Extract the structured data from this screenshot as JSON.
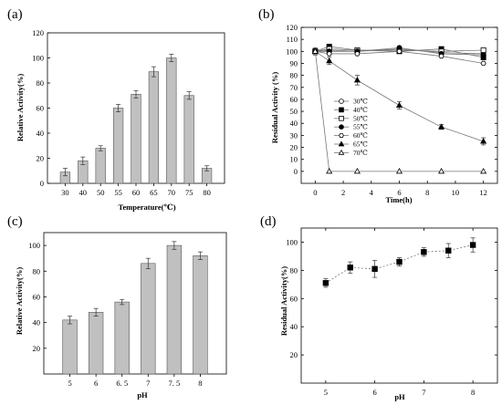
{
  "chart_data": [
    {
      "panel": "(a)",
      "type": "bar",
      "xlabel": "Temperature(℃)",
      "ylabel": "Relative Activity(%)",
      "ylim": [
        0,
        120
      ],
      "yticks": [
        0,
        20,
        40,
        60,
        80,
        100,
        120
      ],
      "categories": [
        "30",
        "40",
        "50",
        "55",
        "60",
        "65",
        "70",
        "75",
        "80"
      ],
      "values": [
        9,
        18,
        28,
        60,
        71,
        89,
        100,
        70,
        12
      ],
      "errors": [
        3,
        3,
        2,
        3,
        3,
        4,
        3,
        3,
        2
      ],
      "bar_color": "#c0c0c0",
      "grid": false
    },
    {
      "panel": "(b)",
      "type": "line",
      "xlabel": "Time(h)",
      "ylabel": "Residual Activity (%)",
      "xlim": [
        -1,
        13
      ],
      "xticks": [
        0,
        2,
        4,
        6,
        8,
        10,
        12
      ],
      "ylim": [
        -10,
        120
      ],
      "yticks": [
        0,
        10,
        20,
        30,
        40,
        50,
        60,
        70,
        80,
        90,
        100,
        110,
        120
      ],
      "legend_position": "center-left",
      "grid": false,
      "series": [
        {
          "name": "30℃",
          "marker": "circle-open",
          "x": [
            0,
            1,
            3,
            6,
            9,
            12
          ],
          "y": [
            100,
            101,
            100,
            102,
            99,
            98
          ]
        },
        {
          "name": "40℃",
          "marker": "square-filled",
          "x": [
            0,
            1,
            3,
            6,
            9,
            12
          ],
          "y": [
            100,
            104,
            101,
            100,
            102,
            95
          ]
        },
        {
          "name": "50℃",
          "marker": "square-open",
          "x": [
            0,
            1,
            3,
            6,
            9,
            12
          ],
          "y": [
            100,
            102,
            101,
            101,
            100,
            101
          ]
        },
        {
          "name": "55℃",
          "marker": "circle-filled",
          "x": [
            0,
            1,
            3,
            6,
            9,
            12
          ],
          "y": [
            100,
            100,
            100,
            103,
            98,
            97
          ]
        },
        {
          "name": "60℃",
          "marker": "hexagon-open",
          "x": [
            0,
            1,
            3,
            6,
            9,
            12
          ],
          "y": [
            100,
            98,
            98,
            100,
            96,
            90
          ]
        },
        {
          "name": "65℃",
          "marker": "triangle-filled",
          "x": [
            0,
            1,
            3,
            6,
            9,
            12
          ],
          "y": [
            100,
            92,
            76,
            55,
            37,
            25
          ],
          "errors": [
            3,
            3,
            4,
            3,
            2,
            3
          ]
        },
        {
          "name": "70℃",
          "marker": "triangle-open",
          "x": [
            0,
            1,
            3,
            6,
            9,
            12
          ],
          "y": [
            100,
            0,
            0,
            0,
            0,
            0
          ]
        }
      ]
    },
    {
      "panel": "(c)",
      "type": "bar",
      "xlabel": "pH",
      "ylabel": "Relative Activity(%)",
      "ylim": [
        0,
        110
      ],
      "yticks": [
        20,
        40,
        60,
        80,
        100
      ],
      "categories": [
        "5",
        "6",
        "6.5",
        "7",
        "7.5",
        "8"
      ],
      "values": [
        42,
        48,
        56,
        86,
        100,
        92
      ],
      "errors": [
        3,
        3,
        2,
        4,
        3,
        3
      ],
      "bar_color": "#c0c0c0",
      "grid": false
    },
    {
      "panel": "(d)",
      "type": "line",
      "xlabel": "pH",
      "ylabel": "Residual Activity(%)",
      "xlim": [
        4.5,
        8.5
      ],
      "xticks": [
        5,
        6,
        7,
        8
      ],
      "ylim": [
        0,
        110
      ],
      "yticks": [
        20,
        40,
        60,
        80,
        100
      ],
      "grid": false,
      "series": [
        {
          "marker": "square-filled",
          "x": [
            5,
            5.5,
            6,
            6.5,
            7,
            7.5,
            8
          ],
          "y": [
            71,
            82,
            81,
            86,
            93,
            94,
            98
          ],
          "errors": [
            3,
            4,
            6,
            3,
            3,
            5,
            5
          ]
        }
      ]
    }
  ]
}
